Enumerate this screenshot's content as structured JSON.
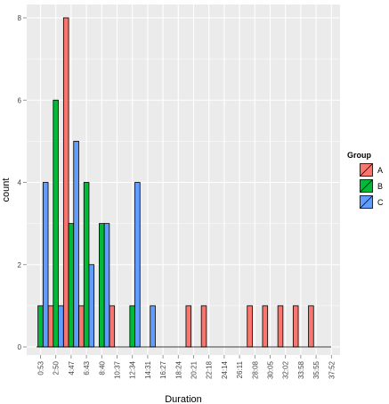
{
  "chart_data": {
    "type": "bar",
    "xlabel": "Duration",
    "ylabel": "count",
    "ylim": [
      0,
      8
    ],
    "yticks": [
      "0",
      "2",
      "4",
      "6",
      "8"
    ],
    "categories": [
      "0:53",
      "2:50",
      "4:47",
      "6:43",
      "8:40",
      "10:37",
      "12:34",
      "14:31",
      "16:27",
      "18:24",
      "20:21",
      "22:18",
      "24:14",
      "26:11",
      "28:08",
      "30:05",
      "32:02",
      "33:58",
      "35:55",
      "37:52"
    ],
    "legend": {
      "title": "Group",
      "position": "right"
    },
    "grid": true,
    "series": [
      {
        "name": "A",
        "color": "#F8766D",
        "values": [
          0,
          1,
          8,
          1,
          0,
          1,
          0,
          0,
          0,
          0,
          1,
          1,
          0,
          0,
          1,
          1,
          1,
          1,
          1,
          0
        ]
      },
      {
        "name": "B",
        "color": "#00BA38",
        "values": [
          1,
          6,
          3,
          4,
          3,
          0,
          1,
          0,
          0,
          0,
          0,
          0,
          0,
          0,
          0,
          0,
          0,
          0,
          0,
          0
        ]
      },
      {
        "name": "C",
        "color": "#619CFF",
        "values": [
          4,
          1,
          5,
          2,
          3,
          0,
          4,
          1,
          0,
          0,
          0,
          0,
          0,
          0,
          0,
          0,
          0,
          0,
          0,
          0
        ]
      }
    ]
  }
}
